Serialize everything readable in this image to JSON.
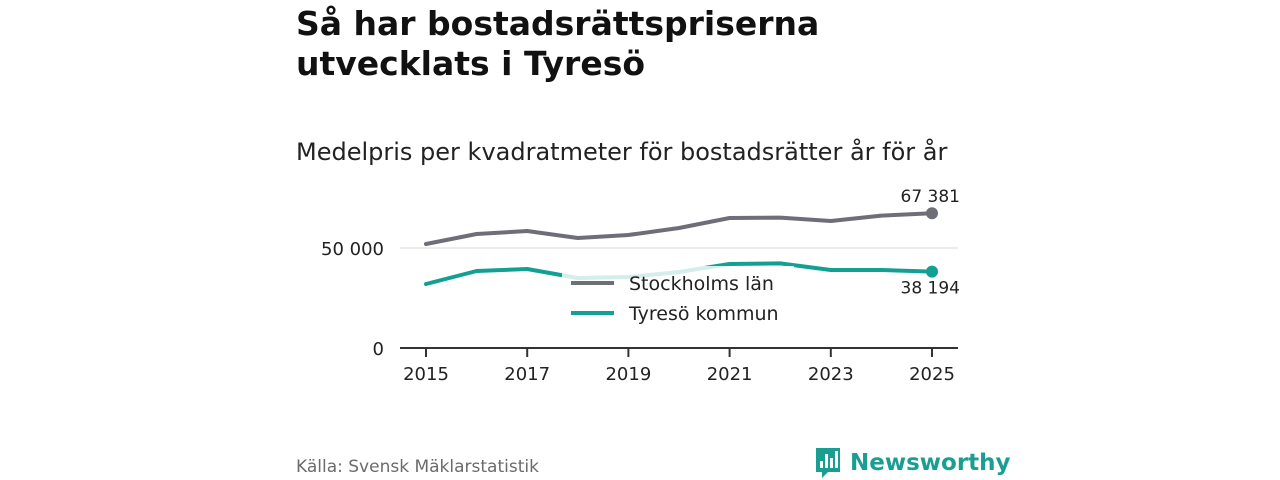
{
  "title": "Så har bostadsrättspriserna utvecklats i Tyresö",
  "subtitle": "Medelpris per kvadratmeter för bostadsrätter år för år",
  "source": "Källa: Svensk Mäklarstatistik",
  "brand": {
    "name": "Newsworthy",
    "icon": "newsworthy-logo-icon",
    "color": "#1a9e91"
  },
  "chart_data": {
    "type": "line",
    "title": "Så har bostadsrättspriserna utvecklats i Tyresö",
    "subtitle": "Medelpris per kvadratmeter för bostadsrätter år för år",
    "xlabel": "",
    "ylabel": "",
    "x": [
      2015,
      2016,
      2017,
      2018,
      2019,
      2020,
      2021,
      2022,
      2023,
      2024,
      2025
    ],
    "xticks": [
      "2015",
      "2017",
      "2019",
      "2021",
      "2023",
      "2025"
    ],
    "yticks": [
      0,
      50000
    ],
    "ytick_labels": [
      "0",
      "50 000"
    ],
    "ylim": [
      0,
      70000
    ],
    "legend_position": "center",
    "series": [
      {
        "name": "Stockholms län",
        "color": "#6e6e78",
        "values": [
          52000,
          57000,
          58500,
          55000,
          56500,
          60000,
          65000,
          65200,
          63500,
          66200,
          67381
        ],
        "end_label": "67 381"
      },
      {
        "name": "Tyresö kommun",
        "color": "#12a094",
        "values": [
          32000,
          38500,
          39500,
          35000,
          35500,
          38000,
          42000,
          42300,
          39000,
          39000,
          38194
        ],
        "end_label": "38 194"
      }
    ]
  }
}
